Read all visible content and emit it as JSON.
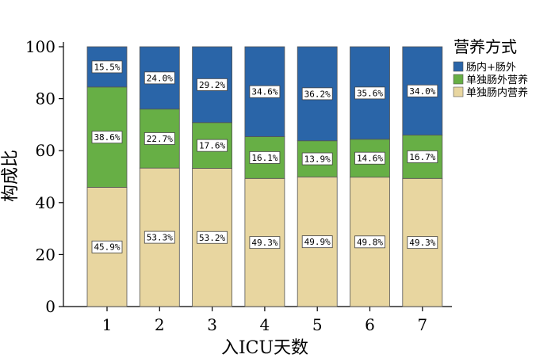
{
  "chart_data": {
    "type": "bar",
    "stacked": true,
    "xlabel": "入ICU天数",
    "ylabel": "构成比",
    "categories": [
      "1",
      "2",
      "3",
      "4",
      "5",
      "6",
      "7"
    ],
    "ylim": [
      0,
      100
    ],
    "yticks": [
      0,
      20,
      40,
      60,
      80,
      100
    ],
    "legend": {
      "title": "营养方式",
      "placement": "top-right"
    },
    "series": [
      {
        "name": "单独肠内营养",
        "color": "#E8D6A0",
        "values": [
          45.9,
          53.3,
          53.2,
          49.3,
          49.9,
          49.8,
          49.3
        ],
        "labels": [
          "45.9%",
          "53.3%",
          "53.2%",
          "49.3%",
          "49.9%",
          "49.8%",
          "49.3%"
        ]
      },
      {
        "name": "单独肠外营养",
        "color": "#67AF45",
        "values": [
          38.6,
          22.7,
          17.6,
          16.1,
          13.9,
          14.6,
          16.7
        ],
        "labels": [
          "38.6%",
          "22.7%",
          "17.6%",
          "16.1%",
          "13.9%",
          "14.6%",
          "16.7%"
        ]
      },
      {
        "name": "肠内+肠外",
        "color": "#2A65A8",
        "values": [
          15.5,
          24.0,
          29.2,
          34.6,
          36.2,
          35.6,
          34.0
        ],
        "labels": [
          "15.5%",
          "24.0%",
          "29.2%",
          "34.6%",
          "36.2%",
          "35.6%",
          "34.0%"
        ]
      }
    ],
    "legend_order": [
      2,
      1,
      0
    ]
  }
}
